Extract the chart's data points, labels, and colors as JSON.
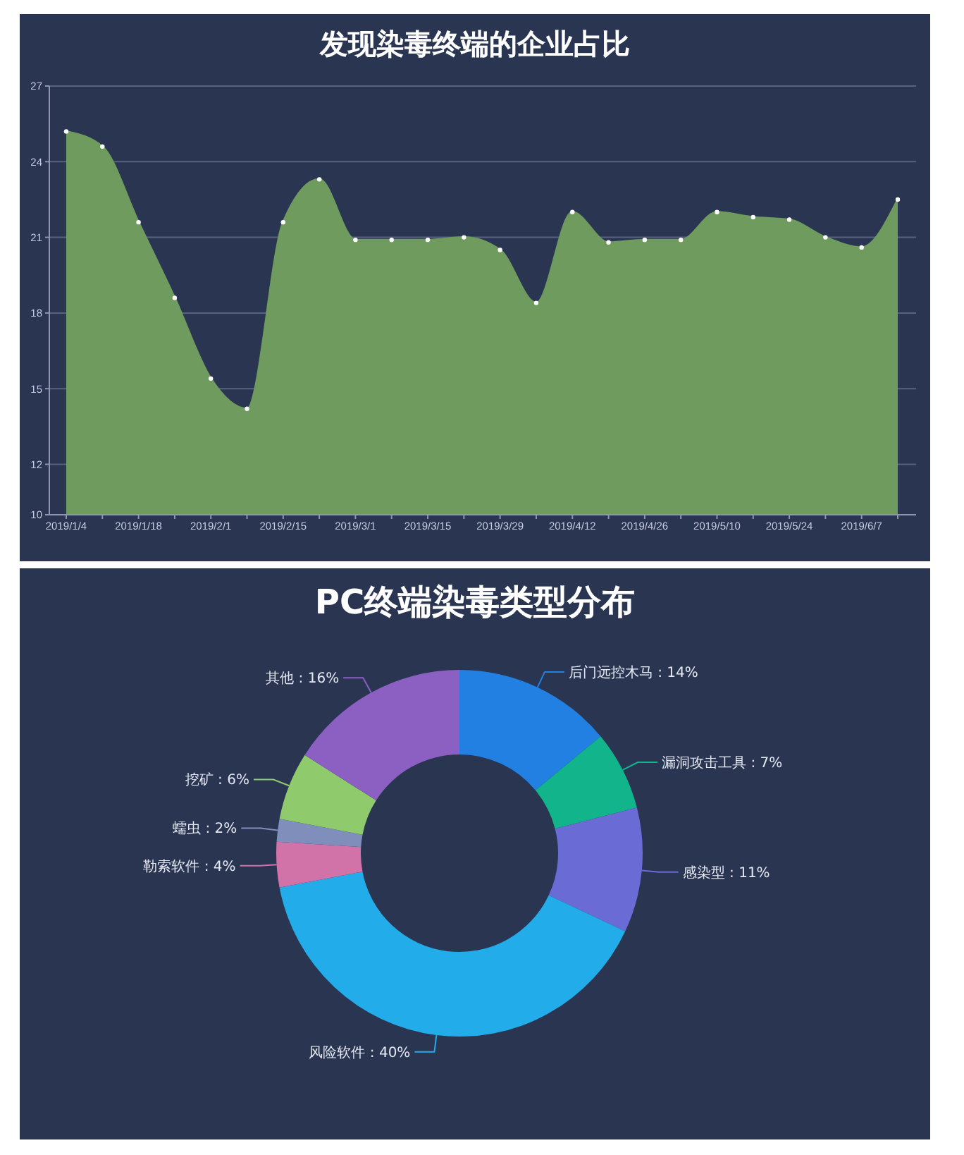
{
  "chart_data": [
    {
      "type": "area",
      "title": "发现染毒终端的企业占比",
      "categories": [
        "2019/1/4",
        null,
        "2019/1/18",
        null,
        "2019/2/1",
        null,
        "2019/2/15",
        null,
        "2019/3/1",
        null,
        "2019/3/15",
        null,
        "2019/3/29",
        null,
        "2019/4/12",
        null,
        "2019/4/26",
        null,
        "2019/5/10",
        null,
        "2019/5/24",
        null,
        "2019/6/7",
        null
      ],
      "series": [
        {
          "color": "#6f9b5f",
          "values": [
            25.2,
            24.6,
            21.6,
            18.6,
            15.4,
            14.2,
            21.6,
            23.3,
            20.9,
            20.9,
            20.9,
            21.0,
            20.5,
            18.4,
            22.0,
            20.8,
            20.9,
            20.9,
            22.0,
            21.8,
            21.7,
            21.0,
            20.6,
            22.5
          ]
        }
      ],
      "ylim": [
        10,
        27
      ],
      "yticks": [
        10,
        12,
        15,
        18,
        21,
        24,
        27
      ],
      "grid": "y",
      "marker": "circle"
    },
    {
      "type": "donut",
      "title": "PC终端染毒类型分布",
      "categories": [
        "后门远控木马",
        "漏洞攻击工具",
        "感染型",
        "风险软件",
        "勒索软件",
        "蠕虫",
        "挖矿",
        "其他"
      ],
      "values": [
        14,
        7,
        11,
        40,
        4,
        2,
        6,
        16
      ],
      "value_labels": [
        "14%",
        "7%",
        "11%",
        "40%",
        "4%",
        "2%",
        "6%",
        "16%"
      ],
      "colors": [
        "#2180e2",
        "#12b48c",
        "#6b6bd6",
        "#22adea",
        "#d173a9",
        "#7f8eba",
        "#8fca6d",
        "#8c5fc3"
      ]
    }
  ]
}
